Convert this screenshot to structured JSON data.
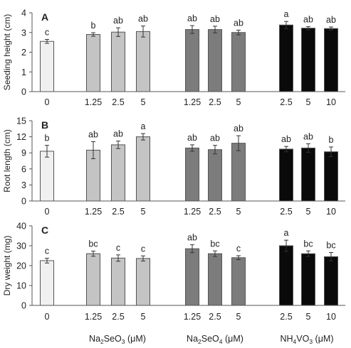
{
  "chart_data": [
    {
      "panel": "A",
      "type": "bar",
      "ylabel": "Seeding height (cm)",
      "ylim": [
        0,
        4
      ],
      "yticks": [
        0,
        1,
        2,
        3,
        4
      ],
      "categories": [
        "0",
        "1.25",
        "2.5",
        "5",
        "1.25",
        "2.5",
        "5",
        "2.5",
        "5",
        "10"
      ],
      "groups": [
        "control",
        "Na2SeO3",
        "Na2SeO3",
        "Na2SeO3",
        "Na2SeO4",
        "Na2SeO4",
        "Na2SeO4",
        "NH4VO3",
        "NH4VO3",
        "NH4VO3"
      ],
      "values": [
        2.55,
        2.9,
        3.02,
        3.05,
        3.15,
        3.15,
        3.0,
        3.38,
        3.22,
        3.2
      ],
      "errors": [
        0.1,
        0.09,
        0.22,
        0.28,
        0.2,
        0.17,
        0.12,
        0.18,
        0.08,
        0.08
      ],
      "letters": [
        "c",
        "b",
        "ab",
        "ab",
        "ab",
        "ab",
        "ab",
        "a",
        "ab",
        "ab"
      ]
    },
    {
      "panel": "B",
      "type": "bar",
      "ylabel": "Root length (cm)",
      "ylim": [
        0,
        15
      ],
      "yticks": [
        0,
        3,
        6,
        9,
        12,
        15
      ],
      "categories": [
        "0",
        "1.25",
        "2.5",
        "5",
        "1.25",
        "2.5",
        "5",
        "2.5",
        "5",
        "10"
      ],
      "groups": [
        "control",
        "Na2SeO3",
        "Na2SeO3",
        "Na2SeO3",
        "Na2SeO4",
        "Na2SeO4",
        "Na2SeO4",
        "NH4VO3",
        "NH4VO3",
        "NH4VO3"
      ],
      "values": [
        9.3,
        9.5,
        10.5,
        12.0,
        9.9,
        9.6,
        10.8,
        9.7,
        9.9,
        9.2
      ],
      "errors": [
        1.1,
        1.6,
        0.7,
        0.6,
        0.6,
        0.8,
        1.4,
        0.5,
        0.8,
        0.9
      ],
      "letters": [
        "b",
        "ab",
        "ab",
        "a",
        "ab",
        "ab",
        "ab",
        "ab",
        "ab",
        "b"
      ]
    },
    {
      "panel": "C",
      "type": "bar",
      "ylabel": "Dry weight (mg)",
      "ylim": [
        0,
        40
      ],
      "yticks": [
        0,
        10,
        20,
        30,
        40
      ],
      "categories": [
        "0",
        "1.25",
        "2.5",
        "5",
        "1.25",
        "2.5",
        "5",
        "2.5",
        "5",
        "10"
      ],
      "groups": [
        "control",
        "Na2SeO3",
        "Na2SeO3",
        "Na2SeO3",
        "Na2SeO4",
        "Na2SeO4",
        "Na2SeO4",
        "NH4VO3",
        "NH4VO3",
        "NH4VO3"
      ],
      "values": [
        22.5,
        26.0,
        23.8,
        23.6,
        28.5,
        26.0,
        24.0,
        30.0,
        26.0,
        24.5
      ],
      "errors": [
        1.2,
        1.3,
        1.6,
        1.3,
        2.0,
        1.4,
        1.0,
        2.8,
        1.4,
        2.1
      ],
      "letters": [
        "c",
        "bc",
        "c",
        "c",
        "ab",
        "bc",
        "c",
        "a",
        "bc",
        "bc"
      ]
    }
  ],
  "group_labels": [
    {
      "main": "Na",
      "sub1": "2",
      "mid": "SeO",
      "sub2": "3",
      "tail": " (μM)"
    },
    {
      "main": "Na",
      "sub1": "2",
      "mid": "SeO",
      "sub2": "4",
      "tail": " (μM)"
    },
    {
      "main": "NH",
      "sub1": "4",
      "mid": "VO",
      "sub2": "3",
      "tail": " (μM)"
    }
  ],
  "colors": {
    "control": "#f0f0f0",
    "Na2SeO3": "#c4c4c4",
    "Na2SeO4": "#7c7c7c",
    "NH4VO3": "#0a0a0a",
    "bar_edge": "#555555",
    "axis": "#555555",
    "text": "#222222"
  }
}
